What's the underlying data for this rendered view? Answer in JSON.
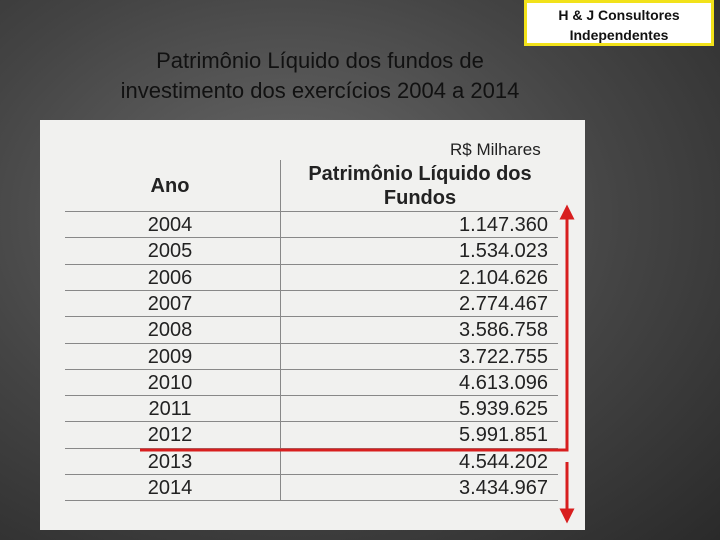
{
  "badge": {
    "lines": [
      "H & J Consultores",
      "Independentes"
    ]
  },
  "title": {
    "lines": [
      "Patrimônio Líquido dos fundos de",
      "investimento dos exercícios 2004 a 2014"
    ]
  },
  "table": {
    "unit": "R$ Milhares",
    "columns": [
      "Ano",
      "Patrimônio Líquido dos Fundos"
    ],
    "rows": [
      [
        "2004",
        "1.147.360"
      ],
      [
        "2005",
        "1.534.023"
      ],
      [
        "2006",
        "2.104.626"
      ],
      [
        "2007",
        "2.774.467"
      ],
      [
        "2008",
        "3.586.758"
      ],
      [
        "2009",
        "3.722.755"
      ],
      [
        "2010",
        "4.613.096"
      ],
      [
        "2011",
        "5.939.625"
      ],
      [
        "2012",
        "5.991.851"
      ],
      [
        "2013",
        "4.544.202"
      ],
      [
        "2014",
        "3.434.967"
      ]
    ]
  }
}
